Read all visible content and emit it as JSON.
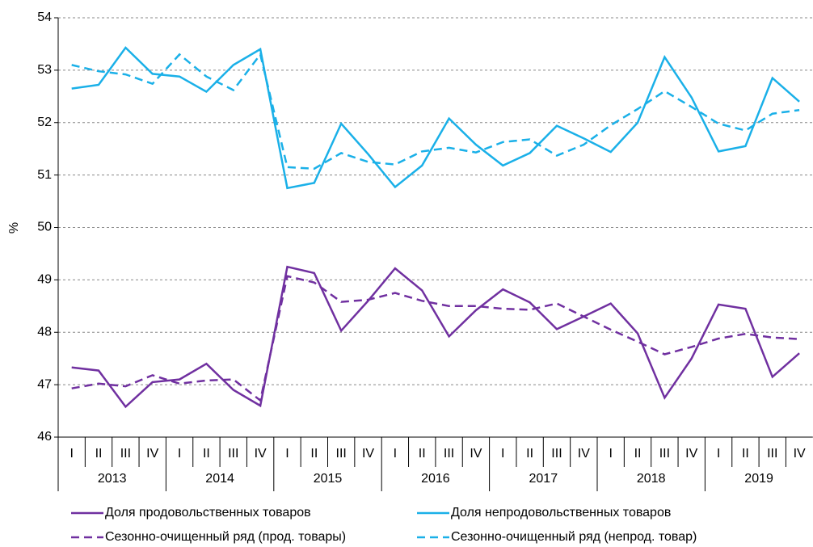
{
  "chart_data": {
    "type": "line",
    "y_label": "%",
    "categories": [
      "I",
      "II",
      "III",
      "IV",
      "I",
      "II",
      "III",
      "IV",
      "I",
      "II",
      "III",
      "IV",
      "I",
      "II",
      "III",
      "IV",
      "I",
      "II",
      "III",
      "IV",
      "I",
      "II",
      "III",
      "IV",
      "I",
      "II",
      "III",
      "IV"
    ],
    "groups": [
      "2013",
      "2014",
      "2015",
      "2016",
      "2017",
      "2018",
      "2019"
    ],
    "ylim": [
      46,
      54
    ],
    "yticks": [
      46,
      47,
      48,
      49,
      50,
      51,
      52,
      53,
      54
    ],
    "grid": true,
    "series": [
      {
        "name": "Доля продовольственных товаров",
        "color": "#7030a0",
        "dash": false,
        "values": [
          47.33,
          47.27,
          46.58,
          47.05,
          47.1,
          47.4,
          46.9,
          46.6,
          49.25,
          49.13,
          48.03,
          48.6,
          49.22,
          48.8,
          47.92,
          48.42,
          48.82,
          48.57,
          48.06,
          48.3,
          48.55,
          47.98,
          46.75,
          47.5,
          48.53,
          48.45,
          47.15,
          47.6
        ]
      },
      {
        "name": "Доля непродовольственных товаров",
        "color": "#1ab0e8",
        "dash": false,
        "values": [
          52.65,
          52.72,
          53.43,
          52.93,
          52.88,
          52.59,
          53.1,
          53.4,
          50.75,
          50.85,
          51.98,
          51.4,
          50.77,
          51.18,
          52.08,
          51.58,
          51.18,
          51.42,
          51.94,
          51.7,
          51.44,
          52.0,
          53.25,
          52.48,
          51.45,
          51.55,
          52.85,
          52.4
        ]
      },
      {
        "name": "Сезонно-очищенный ряд (прод. товары)",
        "color": "#7030a0",
        "dash": true,
        "values": [
          46.93,
          47.02,
          46.97,
          47.18,
          47.02,
          47.08,
          47.1,
          46.7,
          49.07,
          48.95,
          48.58,
          48.62,
          48.75,
          48.6,
          48.5,
          48.5,
          48.45,
          48.43,
          48.55,
          48.3,
          48.05,
          47.82,
          47.58,
          47.72,
          47.88,
          47.97,
          47.9,
          47.87
        ]
      },
      {
        "name": "Сезонно-очищенный ряд (непрод. товар)",
        "color": "#1ab0e8",
        "dash": true,
        "values": [
          53.1,
          52.98,
          52.92,
          52.74,
          53.3,
          52.88,
          52.62,
          53.3,
          51.15,
          51.12,
          51.42,
          51.25,
          51.2,
          51.45,
          51.52,
          51.43,
          51.63,
          51.68,
          51.37,
          51.58,
          51.95,
          52.26,
          52.6,
          52.3,
          51.98,
          51.85,
          52.17,
          52.24
        ]
      }
    ]
  }
}
